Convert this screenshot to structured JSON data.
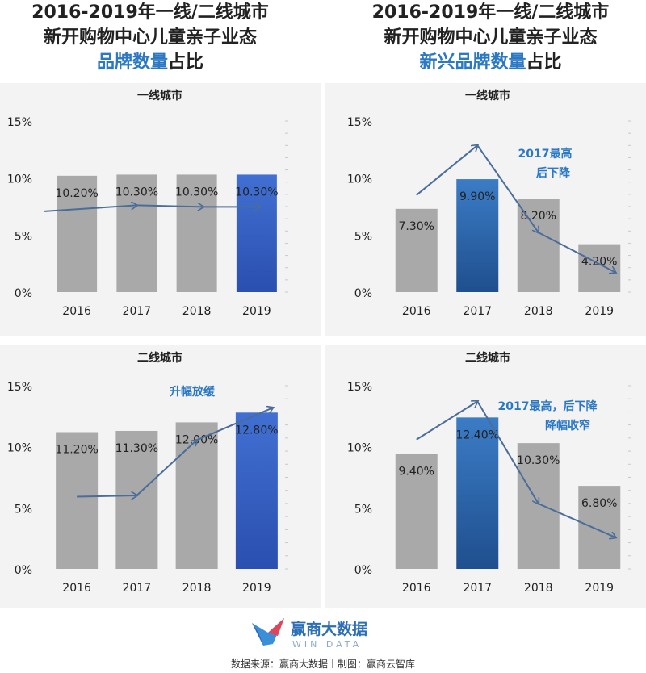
{
  "titles": {
    "left": {
      "line1": "2016-2019年一线/二线城市",
      "line2": "新开购物中心儿童亲子业态",
      "line3_hl": "品牌数量",
      "line3_rest": "占比"
    },
    "right": {
      "line1": "2016-2019年一线/二线城市",
      "line2": "新开购物中心儿童亲子业态",
      "line3_hl": "新兴品牌数量",
      "line3_rest": "占比"
    }
  },
  "colors": {
    "gray": "#a9a9a9",
    "blue_grad_top": "#3f6fd0",
    "blue_grad_bottom": "#2a4fb0",
    "dark_blue_top": "#3b78c2",
    "dark_blue_bottom": "#1f4f8e",
    "arrow": "#4a6d9a",
    "annot": "#2b78c4"
  },
  "chart_data": [
    {
      "type": "bar",
      "title": "一线城市",
      "categories": [
        "2016",
        "2017",
        "2018",
        "2019"
      ],
      "values": [
        10.2,
        10.3,
        10.3,
        10.3
      ],
      "labels": [
        "10.20%",
        "10.30%",
        "10.30%",
        "10.30%"
      ],
      "highlight": [
        false,
        false,
        false,
        true
      ],
      "ylim": [
        0,
        15
      ],
      "yticks": [
        "0%",
        "5%",
        "10%",
        "15%"
      ],
      "annotation": ""
    },
    {
      "type": "bar",
      "title": "一线城市",
      "categories": [
        "2016",
        "2017",
        "2018",
        "2019"
      ],
      "values": [
        7.3,
        9.9,
        8.2,
        4.2
      ],
      "labels": [
        "7.30%",
        "9.90%",
        "8.20%",
        "4.20%"
      ],
      "highlight": [
        false,
        true,
        false,
        false
      ],
      "ylim": [
        0,
        15
      ],
      "yticks": [
        "0%",
        "5%",
        "10%",
        "15%"
      ],
      "annotation": [
        "2017最高",
        "后下降"
      ]
    },
    {
      "type": "bar",
      "title": "二线城市",
      "categories": [
        "2016",
        "2017",
        "2018",
        "2019"
      ],
      "values": [
        11.2,
        11.3,
        12.0,
        12.8
      ],
      "labels": [
        "11.20%",
        "11.30%",
        "12.00%",
        "12.80%"
      ],
      "highlight": [
        false,
        false,
        false,
        true
      ],
      "ylim": [
        0,
        15
      ],
      "yticks": [
        "0%",
        "5%",
        "10%",
        "15%"
      ],
      "annotation": [
        "升幅放缓"
      ]
    },
    {
      "type": "bar",
      "title": "二线城市",
      "categories": [
        "2016",
        "2017",
        "2018",
        "2019"
      ],
      "values": [
        9.4,
        12.4,
        10.3,
        6.8
      ],
      "labels": [
        "9.40%",
        "12.40%",
        "10.30%",
        "6.80%"
      ],
      "highlight": [
        false,
        true,
        false,
        false
      ],
      "ylim": [
        0,
        15
      ],
      "yticks": [
        "0%",
        "5%",
        "10%",
        "15%"
      ],
      "annotation": [
        "2017最高，后下降",
        "降幅收窄"
      ]
    }
  ],
  "footer": {
    "brand": "赢商大数据",
    "brand_sub": "WIN DATA",
    "source": "数据来源：赢商大数据丨制图：赢商云智库"
  }
}
